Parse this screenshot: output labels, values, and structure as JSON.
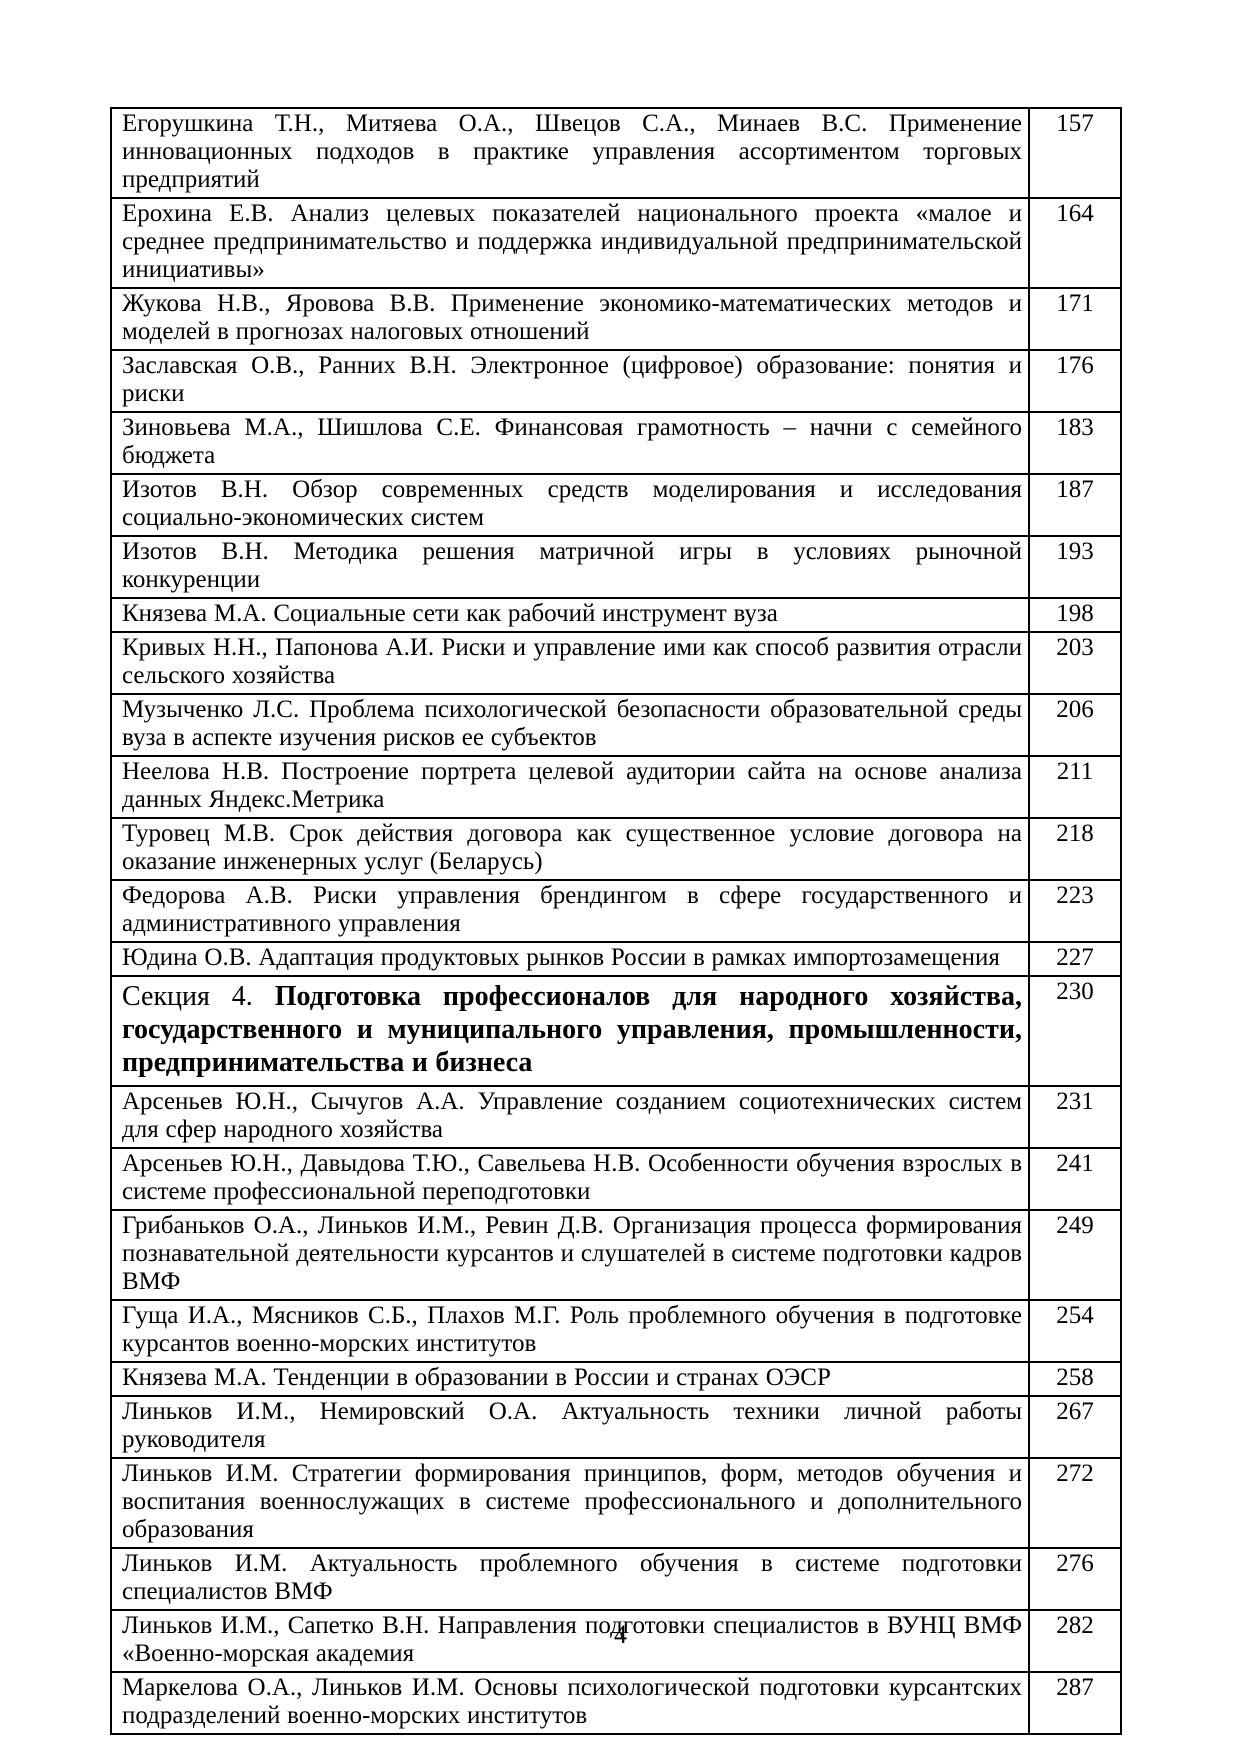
{
  "page": {
    "footer_page_number": "4"
  },
  "toc": {
    "rows": [
      {
        "type": "entry",
        "title": "Егорушкина Т.Н., Митяева О.А., Швецов С.А., Минаев В.С. Применение инновационных подходов в практике управления ассортиментом торговых предприятий",
        "page": "157"
      },
      {
        "type": "entry",
        "title": "Ерохина Е.В. Анализ целевых показателей национального проекта «малое и среднее предпринимательство и поддержка индивидуальной предпринимательской инициативы»",
        "page": "164"
      },
      {
        "type": "entry",
        "title": "Жукова Н.В., Яровова В.В. Применение экономико-математических методов и моделей в прогнозах налоговых отношений",
        "page": "171"
      },
      {
        "type": "entry",
        "title": "Заславская О.В., Ранних В.Н. Электронное (цифровое) образование: понятия и риски",
        "page": "176"
      },
      {
        "type": "entry",
        "title": "Зиновьева М.А., Шишлова С.Е. Финансовая грамотность – начни с семейного бюджета",
        "page": "183"
      },
      {
        "type": "entry",
        "title": "Изотов В.Н. Обзор современных средств моделирования и исследования социально-экономических систем",
        "page": "187"
      },
      {
        "type": "entry",
        "title": "Изотов В.Н. Методика решения матричной игры в условиях рыночной конкуренции",
        "page": "193"
      },
      {
        "type": "entry",
        "title": "Князева М.А. Социальные сети как рабочий инструмент вуза",
        "page": "198"
      },
      {
        "type": "entry",
        "title": "Кривых Н.Н., Папонова А.И. Риски и управление ими как способ развития отрасли сельского хозяйства",
        "page": "203"
      },
      {
        "type": "entry",
        "title": "Музыченко Л.С. Проблема психологической безопасности образовательной среды вуза в аспекте изучения рисков ее субъектов",
        "page": "206"
      },
      {
        "type": "entry",
        "title": "Неелова Н.В. Построение портрета целевой аудитории сайта на основе анализа данных Яндекс.Метрика",
        "page": "211"
      },
      {
        "type": "entry",
        "title": "Туровец М.В. Срок действия договора как существенное условие договора на оказание инженерных услуг (Беларусь)",
        "page": "218"
      },
      {
        "type": "entry",
        "title": "Федорова А.В. Риски управления брендингом в сфере государственного и административного управления",
        "page": "223"
      },
      {
        "type": "entry",
        "title": "Юдина О.В. Адаптация продуктовых рынков России в рамках импортозамещения",
        "page": "227"
      },
      {
        "type": "section",
        "prefix": "Секция 4. ",
        "title": "Подготовка профессионалов для народного хозяйства, государственного и муниципального управления, промышленности, предпринимательства и бизнеса",
        "page": "230"
      },
      {
        "type": "entry",
        "title": "Арсеньев Ю.Н., Сычугов А.А. Управление созданием социотехнических систем для сфер народного хозяйства",
        "page": "231"
      },
      {
        "type": "entry",
        "title": "Арсеньев Ю.Н., Давыдова Т.Ю., Савельева Н.В. Особенности обучения взрослых в системе профессиональной переподготовки",
        "page": "241"
      },
      {
        "type": "entry",
        "title": "Грибаньков О.А., Линьков И.М., Ревин Д.В. Организация процесса формирования познавательной деятельности курсантов и слушателей в системе подготовки кадров ВМФ",
        "page": "249"
      },
      {
        "type": "entry",
        "title": "Гуща И.А., Мясников С.Б., Плахов М.Г. Роль проблемного обучения в подготовке курсантов военно-морских институтов",
        "page": "254"
      },
      {
        "type": "entry",
        "title": "Князева М.А. Тенденции в образовании в России и странах ОЭСР",
        "page": "258"
      },
      {
        "type": "entry",
        "title": "Линьков И.М., Немировский О.А. Актуальность техники личной работы руководителя",
        "page": "267"
      },
      {
        "type": "entry",
        "title": "Линьков И.М. Стратегии формирования принципов, форм, методов обучения и воспитания военнослужащих в системе профессионального и дополнительного образования",
        "page": "272"
      },
      {
        "type": "entry",
        "title": "Линьков И.М. Актуальность проблемного обучения в системе подготовки специалистов ВМФ",
        "page": "276"
      },
      {
        "type": "entry",
        "title": "Линьков И.М., Сапетко В.Н. Направления подготовки специалистов в ВУНЦ ВМФ «Военно-морская академия",
        "page": "282"
      },
      {
        "type": "entry",
        "title": "Маркелова О.А., Линьков И.М. Основы психологической подготовки курсантских подразделений военно-морских институтов",
        "page": "287"
      }
    ]
  }
}
